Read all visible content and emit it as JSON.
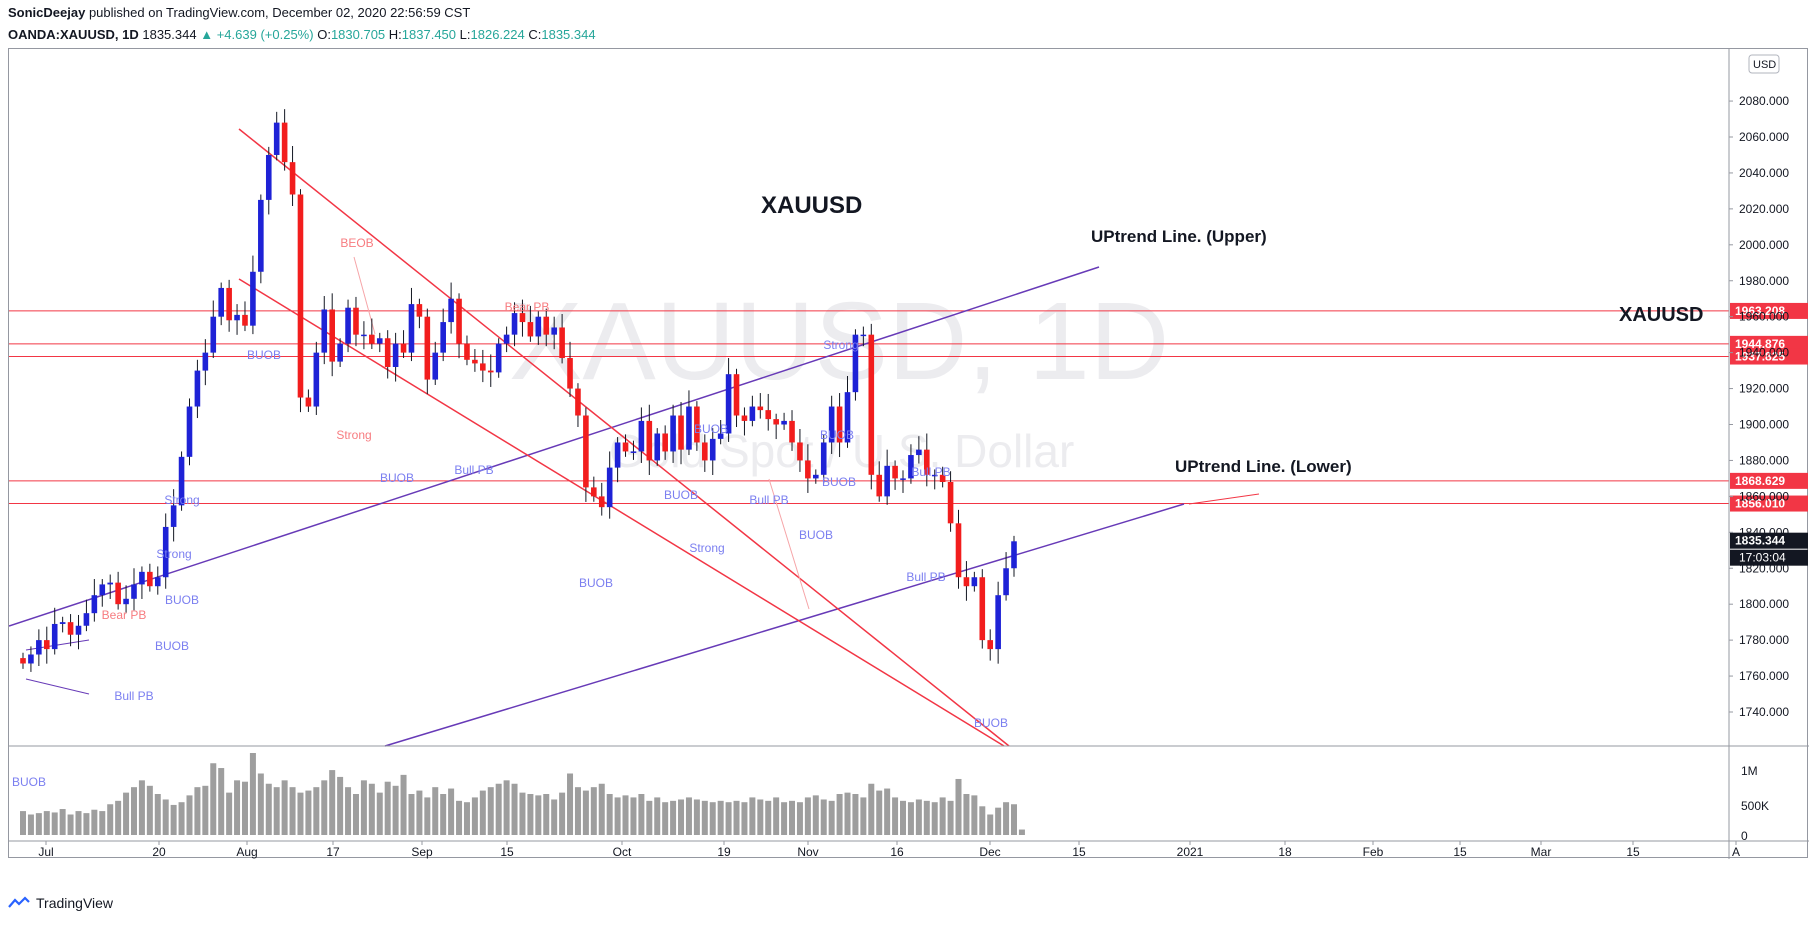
{
  "header": {
    "author": "SonicDeejay",
    "published": "published on TradingView.com, December 02, 2020 22:56:59 CST",
    "symbol": "OANDA:XAUUSD, 1D",
    "last": "1835.344",
    "arrow": "▲",
    "change": "+4.639 (+0.25%)",
    "o_label": "O:",
    "o_val": "1830.705",
    "h_label": "H:",
    "h_val": "1837.450",
    "l_label": "L:",
    "l_val": "1826.224",
    "c_label": "C:",
    "c_val": "1835.344"
  },
  "watermark": {
    "symbol": "XAUUSD, 1D",
    "description": "Gold Spot / U.S. Dollar"
  },
  "annotations": {
    "title": "XAUUSD",
    "title_right": "XAUUSD",
    "upper_line": "UPtrend Line. (Upper)",
    "lower_line": "UPtrend Line. (Lower)"
  },
  "price_axis": {
    "currency": "USD",
    "ticks": [
      "2080.000",
      "2060.000",
      "2040.000",
      "2020.000",
      "2000.000",
      "1980.000",
      "1960.000",
      "1940.000",
      "1920.000",
      "1900.000",
      "1880.000",
      "1860.000",
      "1840.000",
      "1820.000",
      "1800.000",
      "1780.000",
      "1760.000",
      "1740.000"
    ],
    "levels": [
      {
        "label": "1963.208",
        "value": 1963.208
      },
      {
        "label": "1944.876",
        "value": 1944.876
      },
      {
        "label": "1937.825",
        "value": 1937.825
      },
      {
        "label": "1868.629",
        "value": 1868.629
      },
      {
        "label": "1856.010",
        "value": 1856.01
      }
    ],
    "current_price": "1835.344",
    "countdown": "17:03:04"
  },
  "volume_axis": {
    "ticks": [
      "1M",
      "500K",
      "0"
    ]
  },
  "time_axis": {
    "labels": [
      "Jul",
      "20",
      "Aug",
      "17",
      "Sep",
      "15",
      "Oct",
      "19",
      "Nov",
      "16",
      "Dec",
      "15",
      "2021",
      "18",
      "Feb",
      "15",
      "Mar",
      "15",
      "A"
    ]
  },
  "signals": [
    {
      "text": "BUOB",
      "type": "bull"
    },
    {
      "text": "Bull PB",
      "type": "bull"
    },
    {
      "text": "BUOB",
      "type": "bull"
    },
    {
      "text": "Bear PB",
      "type": "bear"
    },
    {
      "text": "BUOB",
      "type": "bull"
    },
    {
      "text": "Strong",
      "type": "bull"
    },
    {
      "text": "Strong",
      "type": "bull"
    },
    {
      "text": "BUOB",
      "type": "bull"
    },
    {
      "text": "BEOB",
      "type": "bear"
    },
    {
      "text": "Strong",
      "type": "bear"
    },
    {
      "text": "BUOB",
      "type": "bull"
    },
    {
      "text": "Bull PB",
      "type": "bull"
    },
    {
      "text": "Bear PB",
      "type": "bear"
    },
    {
      "text": "BUOB",
      "type": "bull"
    },
    {
      "text": "BUOB",
      "type": "bull"
    },
    {
      "text": "BUOB",
      "type": "bull"
    },
    {
      "text": "Strong",
      "type": "bull"
    },
    {
      "text": "Bull PB",
      "type": "bull"
    },
    {
      "text": "Strong",
      "type": "bull"
    },
    {
      "text": "BUOB",
      "type": "bull"
    },
    {
      "text": "Bull PB",
      "type": "bull"
    },
    {
      "text": "BUOB",
      "type": "bull"
    },
    {
      "text": "BUOB",
      "type": "bull"
    },
    {
      "text": "Bull PB",
      "type": "bull"
    },
    {
      "text": "BUOB",
      "type": "bull"
    }
  ],
  "colors": {
    "bull": "#1e22d6",
    "bear": "#f21d1d",
    "level_line": "#f23645",
    "trend_purple": "#673ab7",
    "channel_red": "#f23645",
    "volume": "#9e9e9e",
    "bull_signal": "#7b7ff0",
    "bear_signal": "#f77c80"
  },
  "footer": {
    "brand": "TradingView"
  }
}
